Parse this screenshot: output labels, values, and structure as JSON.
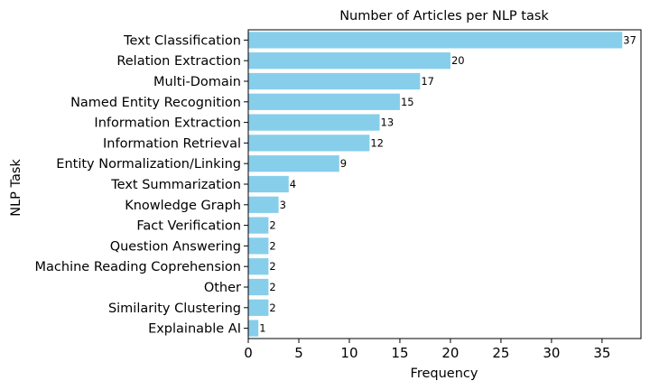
{
  "chart_data": {
    "type": "bar",
    "orientation": "horizontal",
    "title": "Number of Articles per NLP task",
    "xlabel": "Frequency",
    "ylabel": "NLP Task",
    "categories": [
      "Text Classification",
      "Relation Extraction",
      "Multi-Domain",
      "Named Entity Recognition",
      "Information Extraction",
      "Information Retrieval",
      "Entity Normalization/Linking",
      "Text Summarization",
      "Knowledge Graph",
      "Fact Verification",
      "Question Answering",
      "Machine Reading Coprehension",
      "Other",
      "Similarity Clustering",
      "Explainable AI"
    ],
    "values": [
      37,
      20,
      17,
      15,
      13,
      12,
      9,
      4,
      3,
      2,
      2,
      2,
      2,
      2,
      1
    ],
    "xlim": [
      0,
      38.85
    ],
    "xticks": [
      0,
      5,
      10,
      15,
      20,
      25,
      30,
      35
    ],
    "bar_color": "#87ceeb",
    "grid": false,
    "legend": "none"
  }
}
